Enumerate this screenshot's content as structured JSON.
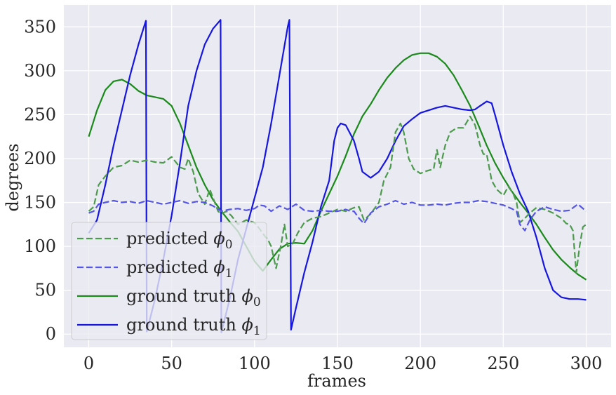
{
  "chart_data": {
    "type": "line",
    "xlabel": "frames",
    "ylabel": "degrees",
    "xlim": [
      -15,
      315
    ],
    "ylim": [
      -15,
      375
    ],
    "xticks": [
      0,
      50,
      100,
      150,
      200,
      250,
      300
    ],
    "yticks": [
      0,
      50,
      100,
      150,
      200,
      250,
      300,
      350
    ],
    "grid": true,
    "background": "#eaeaf2",
    "legend_position": "lower-left",
    "series": [
      {
        "name": "predicted ϕ0",
        "legend_main": "predicted ",
        "legend_sym": "ϕ",
        "legend_sub": "0",
        "color": "#4c9a4c",
        "dashed": true,
        "x": [
          0,
          3,
          6,
          10,
          15,
          20,
          25,
          30,
          35,
          40,
          45,
          50,
          55,
          58,
          60,
          63,
          66,
          70,
          73,
          76,
          78,
          80,
          83,
          86,
          90,
          95,
          100,
          103,
          106,
          108,
          110,
          113,
          116,
          118,
          120,
          123,
          126,
          130,
          135,
          140,
          145,
          150,
          155,
          160,
          163,
          166,
          170,
          175,
          178,
          182,
          185,
          188,
          190,
          193,
          196,
          200,
          204,
          208,
          210,
          212,
          215,
          218,
          222,
          226,
          230,
          233,
          236,
          238,
          240,
          243,
          246,
          250,
          253,
          256,
          258,
          260,
          263,
          266,
          270,
          275,
          280,
          285,
          288,
          290,
          292,
          294,
          296,
          298,
          300
        ],
        "y": [
          140,
          145,
          170,
          180,
          190,
          192,
          198,
          196,
          198,
          196,
          195,
          202,
          190,
          188,
          200,
          185,
          160,
          148,
          165,
          150,
          140,
          137,
          140,
          135,
          125,
          130,
          127,
          120,
          112,
          108,
          100,
          75,
          102,
          125,
          100,
          103,
          115,
          127,
          132,
          134,
          138,
          142,
          140,
          144,
          145,
          130,
          137,
          150,
          175,
          190,
          230,
          240,
          230,
          200,
          188,
          183,
          186,
          188,
          210,
          190,
          215,
          230,
          235,
          235,
          248,
          238,
          215,
          205,
          205,
          175,
          165,
          158,
          168,
          160,
          150,
          127,
          132,
          138,
          144,
          142,
          138,
          132,
          126,
          125,
          118,
          70,
          100,
          122,
          125
        ]
      },
      {
        "name": "predicted ϕ1",
        "legend_main": "predicted ",
        "legend_sym": "ϕ",
        "legend_sub": "1",
        "color": "#5555e6",
        "dashed": true,
        "x": [
          0,
          3,
          6,
          10,
          15,
          20,
          25,
          30,
          35,
          40,
          45,
          50,
          55,
          60,
          65,
          70,
          75,
          80,
          85,
          90,
          95,
          100,
          103,
          106,
          110,
          115,
          120,
          125,
          130,
          135,
          140,
          145,
          150,
          155,
          158,
          160,
          163,
          166,
          170,
          175,
          180,
          185,
          190,
          195,
          200,
          205,
          210,
          215,
          220,
          225,
          230,
          235,
          240,
          245,
          250,
          255,
          258,
          260,
          263,
          266,
          270,
          275,
          280,
          285,
          290,
          295,
          300
        ],
        "y": [
          138,
          140,
          148,
          150,
          152,
          150,
          151,
          149,
          152,
          150,
          148,
          150,
          152,
          149,
          151,
          150,
          146,
          140,
          142,
          143,
          141,
          143,
          147,
          146,
          140,
          146,
          142,
          148,
          141,
          140,
          141,
          140,
          140,
          142,
          140,
          140,
          132,
          126,
          138,
          145,
          148,
          152,
          148,
          150,
          147,
          147,
          148,
          147,
          149,
          150,
          150,
          152,
          151,
          149,
          147,
          143,
          140,
          125,
          118,
          130,
          140,
          145,
          142,
          140,
          141,
          148,
          140
        ]
      },
      {
        "name": "ground truth ϕ0",
        "legend_main": "ground truth ",
        "legend_sym": "ϕ",
        "legend_sub": "0",
        "color": "#1a8a1a",
        "dashed": false,
        "x": [
          0,
          5,
          10,
          15,
          20,
          25,
          30,
          35,
          40,
          45,
          50,
          55,
          60,
          65,
          70,
          75,
          80,
          85,
          90,
          95,
          100,
          105,
          110,
          115,
          120,
          125,
          130,
          135,
          140,
          145,
          150,
          155,
          160,
          165,
          170,
          175,
          180,
          185,
          190,
          195,
          200,
          205,
          210,
          215,
          220,
          225,
          230,
          235,
          240,
          245,
          250,
          255,
          260,
          265,
          270,
          275,
          280,
          285,
          290,
          295,
          300
        ],
        "y": [
          225,
          255,
          278,
          288,
          290,
          285,
          277,
          272,
          270,
          268,
          260,
          240,
          215,
          190,
          170,
          153,
          140,
          128,
          117,
          100,
          83,
          72,
          85,
          97,
          103,
          104,
          103,
          118,
          140,
          160,
          180,
          203,
          228,
          248,
          262,
          278,
          292,
          303,
          312,
          318,
          320,
          320,
          316,
          308,
          295,
          278,
          260,
          238,
          215,
          195,
          178,
          163,
          150,
          138,
          125,
          110,
          96,
          85,
          76,
          68,
          62
        ]
      },
      {
        "name": "ground truth ϕ1",
        "legend_main": "ground truth ",
        "legend_sym": "ϕ",
        "legend_sub": "1",
        "color": "#1616e0",
        "dashed": false,
        "x": [
          0,
          5,
          10,
          15,
          20,
          25,
          30,
          34.5,
          35,
          40,
          45,
          50,
          55,
          60,
          65,
          70,
          75,
          79.5,
          80,
          85,
          90,
          95,
          100,
          105,
          110,
          115,
          120,
          121,
          122,
          125,
          130,
          135,
          140,
          145,
          148,
          150,
          152,
          155,
          160,
          163,
          165,
          170,
          175,
          180,
          185,
          190,
          195,
          200,
          205,
          210,
          215,
          220,
          225,
          230,
          233,
          236,
          240,
          243,
          245,
          250,
          255,
          260,
          265,
          270,
          275,
          280,
          285,
          290,
          295,
          300
        ],
        "y": [
          115,
          130,
          170,
          215,
          255,
          295,
          330,
          357,
          3,
          40,
          85,
          135,
          195,
          260,
          300,
          330,
          348,
          358,
          2,
          40,
          85,
          120,
          155,
          190,
          240,
          295,
          350,
          358,
          5,
          30,
          70,
          105,
          145,
          175,
          220,
          235,
          240,
          238,
          220,
          200,
          185,
          178,
          185,
          200,
          220,
          237,
          245,
          252,
          255,
          258,
          260,
          258,
          256,
          255,
          256,
          260,
          265,
          263,
          250,
          215,
          185,
          160,
          140,
          110,
          75,
          50,
          42,
          40,
          40,
          39
        ]
      }
    ]
  }
}
